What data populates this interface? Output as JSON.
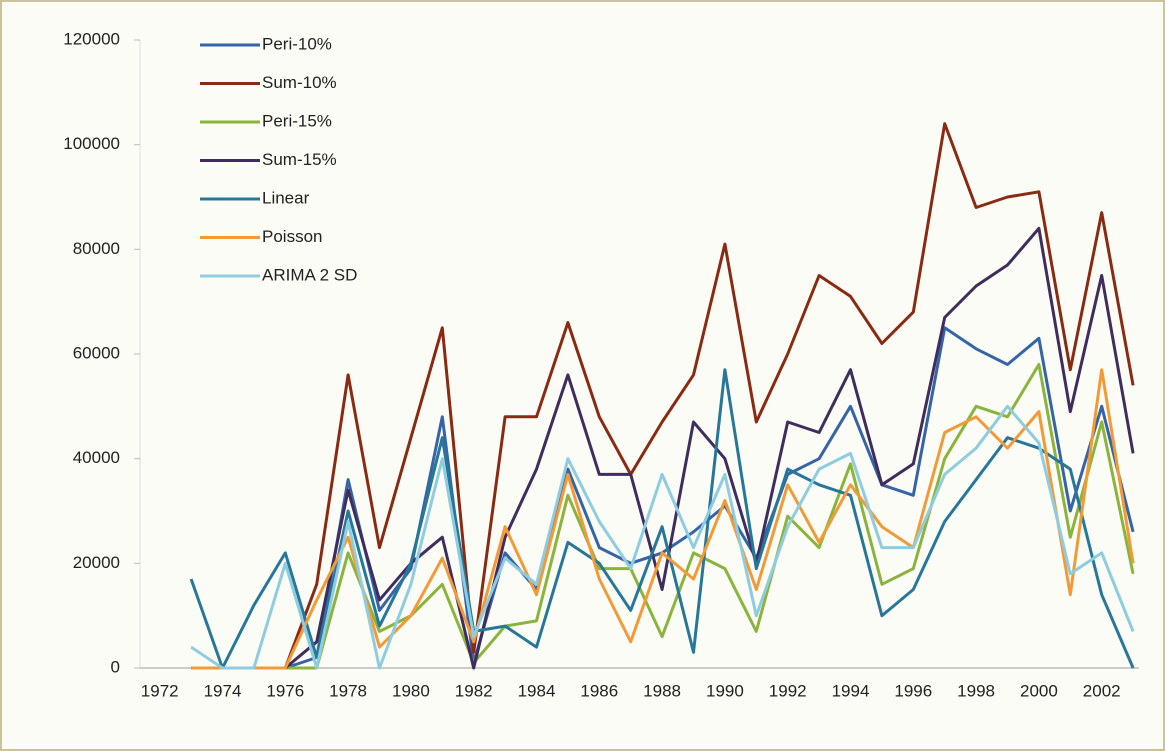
{
  "chart_data": {
    "type": "line",
    "categories": [
      "1972",
      null,
      "1974",
      null,
      "1976",
      null,
      "1978",
      null,
      "1980",
      null,
      "1982",
      null,
      "1984",
      null,
      "1986",
      null,
      "1988",
      null,
      "1990",
      null,
      "1992",
      null,
      "1994",
      null,
      "1996",
      null,
      "1998",
      null,
      "2000",
      null,
      "2002",
      null
    ],
    "series": [
      {
        "name": "Peri-10%",
        "color": "#3565a8",
        "values": [
          null,
          0,
          0,
          0,
          0,
          2000,
          36000,
          11000,
          19000,
          48000,
          1000,
          22000,
          15000,
          38000,
          23000,
          20000,
          22000,
          26000,
          31000,
          21000,
          37000,
          40000,
          50000,
          35000,
          33000,
          65000,
          61000,
          58000,
          63000,
          30000,
          50000,
          26000
        ]
      },
      {
        "name": "Sum-10%",
        "color": "#8b2a12",
        "values": [
          null,
          0,
          0,
          0,
          0,
          16000,
          56000,
          23000,
          44000,
          65000,
          3000,
          48000,
          48000,
          66000,
          48000,
          37000,
          47000,
          56000,
          81000,
          47000,
          60000,
          75000,
          71000,
          62000,
          68000,
          104000,
          88000,
          90000,
          91000,
          57000,
          87000,
          54000
        ]
      },
      {
        "name": "Peri-15%",
        "color": "#8ab43c",
        "values": [
          null,
          0,
          0,
          0,
          0,
          0,
          22000,
          7000,
          10000,
          16000,
          1000,
          8000,
          9000,
          33000,
          19000,
          19000,
          6000,
          22000,
          19000,
          7000,
          29000,
          23000,
          39000,
          16000,
          19000,
          40000,
          50000,
          48000,
          58000,
          25000,
          47000,
          18000
        ]
      },
      {
        "name": "Sum-15%",
        "color": "#3f2d5e",
        "values": [
          null,
          0,
          0,
          0,
          0,
          5000,
          34000,
          13000,
          20000,
          25000,
          0,
          25000,
          38000,
          56000,
          37000,
          37000,
          15000,
          47000,
          40000,
          20000,
          47000,
          45000,
          57000,
          35000,
          39000,
          67000,
          73000,
          77000,
          84000,
          49000,
          75000,
          41000
        ]
      },
      {
        "name": "Linear",
        "color": "#27779a",
        "values": [
          null,
          17000,
          0,
          12000,
          22000,
          2000,
          30000,
          8000,
          20000,
          44000,
          7000,
          8000,
          4000,
          24000,
          20000,
          11000,
          27000,
          3000,
          57000,
          19000,
          38000,
          35000,
          33000,
          10000,
          15000,
          28000,
          36000,
          44000,
          42000,
          38000,
          14000,
          0
        ]
      },
      {
        "name": "Poisson",
        "color": "#f39a38",
        "values": [
          null,
          0,
          0,
          0,
          0,
          13000,
          25000,
          4000,
          10000,
          21000,
          5000,
          27000,
          14000,
          37000,
          17000,
          5000,
          22000,
          17000,
          32000,
          15000,
          35000,
          24000,
          35000,
          27000,
          23000,
          45000,
          48000,
          42000,
          49000,
          14000,
          57000,
          20000
        ]
      },
      {
        "name": "ARIMA 2 SD",
        "color": "#8ecde0",
        "values": [
          null,
          4000,
          0,
          0,
          20000,
          0,
          28000,
          0,
          16000,
          40000,
          6000,
          21000,
          16000,
          40000,
          28000,
          19000,
          37000,
          23000,
          37000,
          10000,
          27000,
          38000,
          41000,
          23000,
          23000,
          37000,
          42000,
          50000,
          43000,
          18000,
          22000,
          7000
        ]
      }
    ],
    "ylim": [
      0,
      120000
    ],
    "yticks": [
      0,
      20000,
      40000,
      60000,
      80000,
      100000,
      120000
    ],
    "legend": "upper left"
  }
}
